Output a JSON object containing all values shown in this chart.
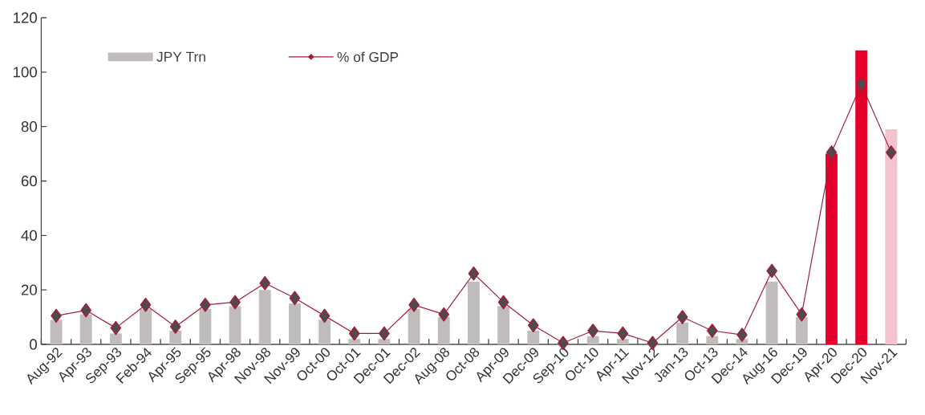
{
  "chart_data": {
    "type": "bar",
    "categories": [
      "Aug-92",
      "Apr-93",
      "Sep-93",
      "Feb-94",
      "Apr-95",
      "Sep-95",
      "Apr-98",
      "Nov-98",
      "Nov-99",
      "Oct-00",
      "Oct-01",
      "Dec-01",
      "Dec-02",
      "Aug-08",
      "Oct-08",
      "Apr-09",
      "Dec-09",
      "Sep-10",
      "Oct-10",
      "Apr-11",
      "Nov-12",
      "Jan-13",
      "Oct-13",
      "Dec-14",
      "Aug-16",
      "Dec-19",
      "Apr-20",
      "Dec-20",
      "Nov-21"
    ],
    "series": [
      {
        "name": "JPY Trn",
        "color": "#c0bcbc",
        "colors": [
          "#c0bcbc",
          "#c0bcbc",
          "#c0bcbc",
          "#c0bcbc",
          "#c0bcbc",
          "#c0bcbc",
          "#c0bcbc",
          "#c0bcbc",
          "#c0bcbc",
          "#c0bcbc",
          "#c0bcbc",
          "#c0bcbc",
          "#c0bcbc",
          "#c0bcbc",
          "#c0bcbc",
          "#c0bcbc",
          "#c0bcbc",
          "#c0bcbc",
          "#c0bcbc",
          "#c0bcbc",
          "#c0bcbc",
          "#c0bcbc",
          "#c0bcbc",
          "#c0bcbc",
          "#c0bcbc",
          "#c0bcbc",
          "#e4002b",
          "#e4002b",
          "#f5c2cf"
        ],
        "values": [
          9,
          11,
          4,
          13,
          5,
          13,
          14,
          20,
          15,
          9,
          2,
          2,
          13,
          10,
          23,
          14,
          5,
          null,
          3,
          2,
          null,
          8,
          3,
          2,
          23,
          10,
          70,
          108,
          79
        ]
      },
      {
        "name": "% of GDP",
        "type": "line",
        "color": "#a0203c",
        "marker": "diamond",
        "values": [
          10.5,
          12.5,
          6,
          14.5,
          6.5,
          14.5,
          15.5,
          22.5,
          17,
          10.5,
          4,
          4,
          14.5,
          11,
          26,
          15.5,
          7,
          0.5,
          5,
          4,
          0.5,
          10,
          5,
          3.5,
          27,
          11,
          70.5,
          95.5,
          70.5
        ]
      }
    ],
    "ylim": [
      0,
      120
    ],
    "yticks": [
      0,
      20,
      40,
      60,
      80,
      100,
      120
    ],
    "legend": "top left"
  }
}
